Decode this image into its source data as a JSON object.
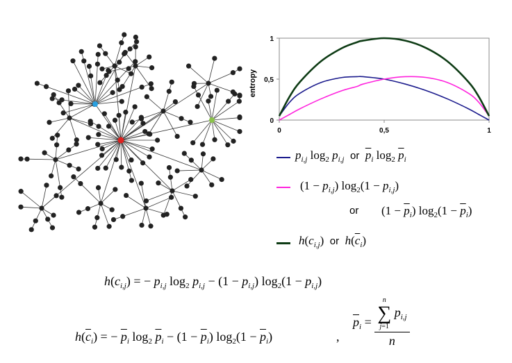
{
  "chart_data": {
    "type": "line",
    "title": "",
    "xlabel": "",
    "ylabel": "entropy",
    "xlim": [
      0,
      1
    ],
    "ylim": [
      0,
      1
    ],
    "x_ticks": [
      "0",
      "0,5",
      "1"
    ],
    "y_ticks": [
      "1",
      "0,5",
      "0"
    ],
    "x": [
      0,
      0.05,
      0.1,
      0.2,
      0.3,
      0.37,
      0.4,
      0.5,
      0.6,
      0.7,
      0.8,
      0.9,
      0.95,
      1
    ],
    "series": [
      {
        "name": "-p log2 p",
        "color": "#1a1a8c",
        "values": [
          0.05,
          0.22,
          0.33,
          0.46,
          0.52,
          0.53,
          0.53,
          0.5,
          0.44,
          0.36,
          0.26,
          0.14,
          0.07,
          0.0
        ]
      },
      {
        "name": "-(1-p) log2 (1-p)",
        "color": "#ff22dd",
        "values": [
          0.0,
          0.07,
          0.14,
          0.26,
          0.36,
          0.41,
          0.44,
          0.5,
          0.53,
          0.52,
          0.46,
          0.33,
          0.22,
          0.05
        ]
      },
      {
        "name": "h(c)",
        "color": "#0d3b14",
        "values": [
          0.05,
          0.29,
          0.47,
          0.72,
          0.88,
          0.95,
          0.97,
          1.0,
          0.97,
          0.88,
          0.72,
          0.47,
          0.29,
          0.05
        ]
      }
    ]
  },
  "legend": {
    "or": "or",
    "colors": {
      "blue": "#1a1a8c",
      "magenta": "#ff22dd",
      "green": "#0d3b14"
    }
  },
  "graph": {
    "hub_colors": {
      "center": "#e0201e",
      "left": "#2aa0e0",
      "right": "#8bc34a",
      "node": "#222222"
    }
  }
}
